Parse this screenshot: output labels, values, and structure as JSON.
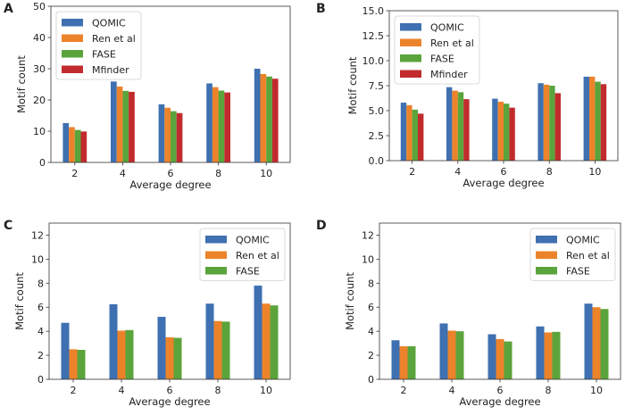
{
  "colors": {
    "QOMIC": "#3f70b1",
    "Ren et al": "#ec832b",
    "FASE": "#5ba43c",
    "Mfinder": "#c12b2d"
  },
  "chart_data": [
    {
      "panel": "A",
      "type": "bar",
      "categories": [
        "2",
        "4",
        "6",
        "8",
        "10"
      ],
      "xlabel": "Average degree",
      "ylabel": "Motif count",
      "ylim": [
        0,
        50
      ],
      "yticks": [
        "0",
        "10",
        "20",
        "30",
        "40",
        "50"
      ],
      "ytick_values": [
        0,
        10,
        20,
        30,
        40,
        50
      ],
      "legend": "upper-left",
      "series": [
        {
          "name": "QOMIC",
          "values": [
            12.6,
            25.9,
            18.6,
            25.3,
            30.0
          ]
        },
        {
          "name": "Ren et al",
          "values": [
            11.3,
            24.3,
            17.5,
            24.1,
            28.3
          ]
        },
        {
          "name": "FASE",
          "values": [
            10.4,
            22.9,
            16.4,
            23.0,
            27.5
          ]
        },
        {
          "name": "Mfinder",
          "values": [
            9.9,
            22.6,
            15.8,
            22.4,
            26.8
          ]
        }
      ]
    },
    {
      "panel": "B",
      "type": "bar",
      "categories": [
        "2",
        "4",
        "6",
        "8",
        "10"
      ],
      "xlabel": "Average degree",
      "ylabel": "Motif count",
      "ylim": [
        0,
        15
      ],
      "yticks": [
        "0.0",
        "2.5",
        "5.0",
        "7.5",
        "10.0",
        "12.5",
        "15.0"
      ],
      "ytick_values": [
        0,
        2.5,
        5,
        7.5,
        10,
        12.5,
        15
      ],
      "legend": "upper-left",
      "series": [
        {
          "name": "QOMIC",
          "values": [
            5.8,
            7.35,
            6.2,
            7.75,
            8.4
          ]
        },
        {
          "name": "Ren et al",
          "values": [
            5.55,
            7.0,
            5.9,
            7.6,
            8.4
          ]
        },
        {
          "name": "FASE",
          "values": [
            5.1,
            6.85,
            5.7,
            7.5,
            7.9
          ]
        },
        {
          "name": "Mfinder",
          "values": [
            4.7,
            6.15,
            5.3,
            6.75,
            7.65
          ]
        }
      ]
    },
    {
      "panel": "C",
      "type": "bar",
      "categories": [
        "2",
        "4",
        "6",
        "8",
        "10"
      ],
      "xlabel": "Average degree",
      "ylabel": "Motif count",
      "ylim": [
        0,
        13
      ],
      "yticks": [
        "0",
        "2",
        "4",
        "6",
        "8",
        "10",
        "12"
      ],
      "ytick_values": [
        0,
        2,
        4,
        6,
        8,
        10,
        12
      ],
      "legend": "upper-right",
      "series": [
        {
          "name": "QOMIC",
          "values": [
            4.7,
            6.25,
            5.2,
            6.3,
            7.8
          ]
        },
        {
          "name": "Ren et al",
          "values": [
            2.5,
            4.05,
            3.5,
            4.85,
            6.3
          ]
        },
        {
          "name": "FASE",
          "values": [
            2.45,
            4.1,
            3.45,
            4.8,
            6.15
          ]
        }
      ]
    },
    {
      "panel": "D",
      "type": "bar",
      "categories": [
        "2",
        "4",
        "6",
        "8",
        "10"
      ],
      "xlabel": "Average degree",
      "ylabel": "Motif count",
      "ylim": [
        0,
        13
      ],
      "yticks": [
        "0",
        "2",
        "4",
        "6",
        "8",
        "10",
        "12"
      ],
      "ytick_values": [
        0,
        2,
        4,
        6,
        8,
        10,
        12
      ],
      "legend": "upper-right",
      "series": [
        {
          "name": "QOMIC",
          "values": [
            3.25,
            4.65,
            3.75,
            4.4,
            6.3
          ]
        },
        {
          "name": "Ren et al",
          "values": [
            2.75,
            4.05,
            3.35,
            3.9,
            6.0
          ]
        },
        {
          "name": "FASE",
          "values": [
            2.75,
            4.0,
            3.15,
            3.95,
            5.85
          ]
        }
      ]
    }
  ]
}
